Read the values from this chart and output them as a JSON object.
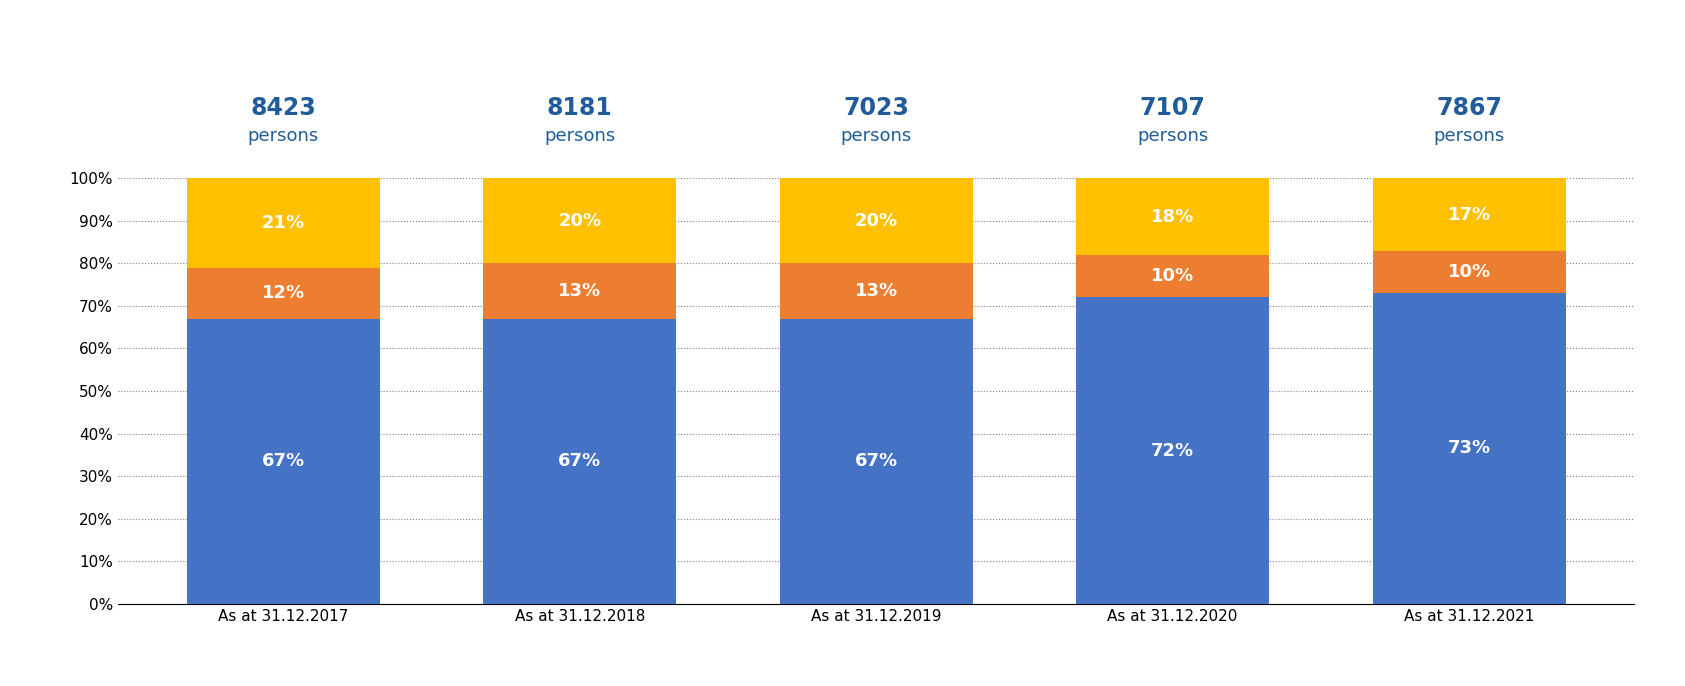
{
  "categories": [
    "As at 31.12.2017",
    "As at 31.12.2018",
    "As at 31.12.2019",
    "As at 31.12.2020",
    "As at 31.12.2021"
  ],
  "totals": [
    "8423",
    "8181",
    "7023",
    "7107",
    "7867"
  ],
  "local": [
    67,
    67,
    67,
    72,
    73
  ],
  "mainland": [
    12,
    13,
    13,
    10,
    10
  ],
  "other": [
    21,
    20,
    20,
    18,
    17
  ],
  "color_local": "#4472C4",
  "color_mainland": "#ED7D31",
  "color_other": "#FFC000",
  "color_title_blue": "#1F5C99",
  "bar_width": 0.65,
  "ylim": [
    0,
    100
  ],
  "yticks": [
    0,
    10,
    20,
    30,
    40,
    50,
    60,
    70,
    80,
    90,
    100
  ],
  "label_fontsize": 13,
  "total_fontsize": 17,
  "persons_fontsize": 13,
  "tick_fontsize": 11
}
